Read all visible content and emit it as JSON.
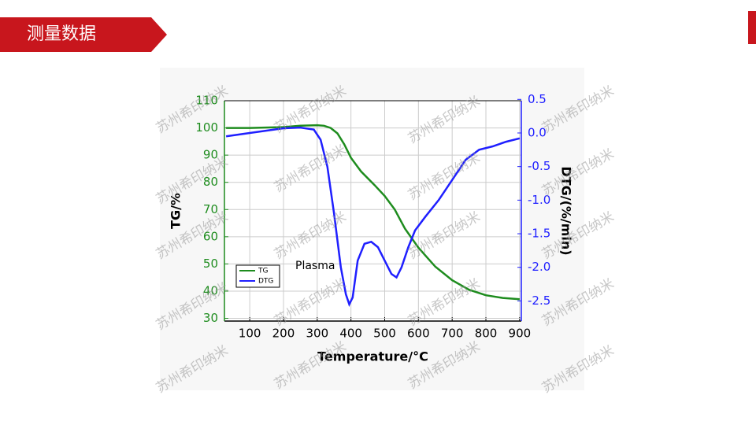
{
  "header": {
    "title": "测量数据"
  },
  "chart_data": {
    "type": "line",
    "x_label": "Temperature/°C",
    "y_label": "TG/%",
    "y2_label": "DTG/(%/min)",
    "annotation": "Plasma",
    "watermark": "苏州希印纳米",
    "xlim": [
      25,
      905
    ],
    "xticks": [
      100,
      200,
      300,
      400,
      500,
      600,
      700,
      800,
      900
    ],
    "ylim": [
      29,
      110
    ],
    "yticks": [
      30,
      40,
      50,
      60,
      70,
      80,
      90,
      100,
      110
    ],
    "y2lim": [
      -2.8,
      0.48
    ],
    "y2ticks": [
      -2.5,
      -2.0,
      -1.5,
      -1.0,
      -0.5,
      0.0,
      0.5
    ],
    "grid": true,
    "legend": "lower-left",
    "series": [
      {
        "name": "TG",
        "color": "#1e8c1e",
        "axis": "y",
        "x": [
          30,
          100,
          200,
          250,
          300,
          320,
          340,
          360,
          380,
          400,
          430,
          470,
          500,
          530,
          560,
          600,
          650,
          700,
          750,
          800,
          850,
          900
        ],
        "values": [
          100,
          100,
          100.3,
          100.8,
          101,
          100.8,
          100,
          98,
          94,
          89,
          84,
          79,
          75,
          70,
          63,
          56,
          49,
          44,
          40.5,
          38.5,
          37.5,
          37
        ]
      },
      {
        "name": "DTG",
        "color": "#1f1fff",
        "axis": "y2",
        "x": [
          30,
          100,
          200,
          250,
          290,
          310,
          330,
          350,
          370,
          385,
          395,
          405,
          420,
          440,
          460,
          480,
          500,
          520,
          535,
          550,
          570,
          590,
          620,
          660,
          700,
          740,
          780,
          820,
          860,
          900
        ],
        "values": [
          -0.05,
          0.0,
          0.07,
          0.08,
          0.05,
          -0.1,
          -0.5,
          -1.2,
          -2.0,
          -2.4,
          -2.55,
          -2.45,
          -1.9,
          -1.65,
          -1.62,
          -1.7,
          -1.9,
          -2.1,
          -2.15,
          -2.0,
          -1.7,
          -1.45,
          -1.25,
          -1.0,
          -0.7,
          -0.4,
          -0.25,
          -0.2,
          -0.13,
          -0.08
        ]
      }
    ]
  }
}
